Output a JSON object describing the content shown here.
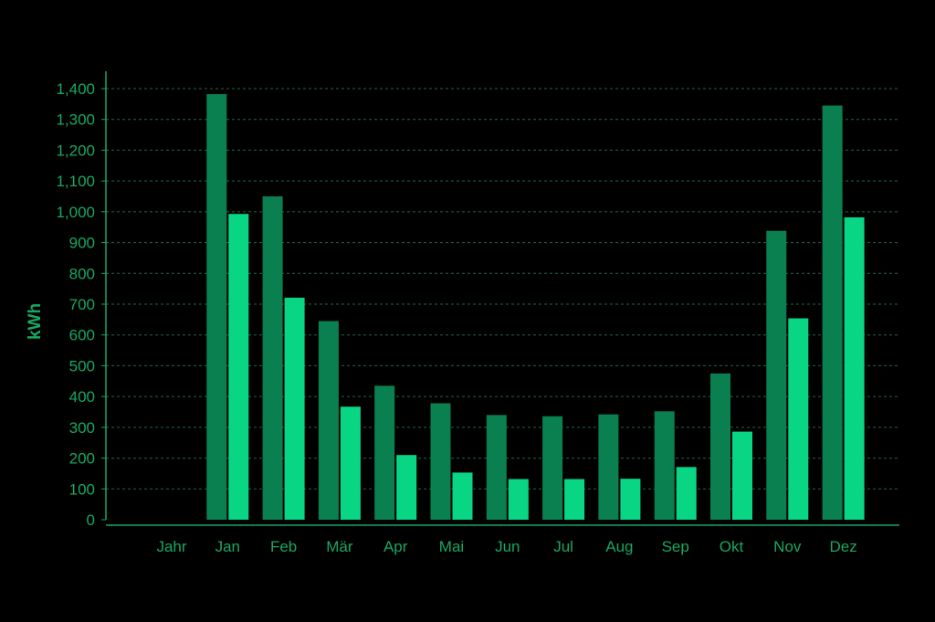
{
  "chart_data": {
    "type": "bar",
    "title": "",
    "xlabel": "",
    "ylabel": "kWh",
    "categories": [
      "Jahr",
      "Jan",
      "Feb",
      "Mär",
      "Apr",
      "Mai",
      "Jun",
      "Jul",
      "Aug",
      "Sep",
      "Okt",
      "Nov",
      "Dez"
    ],
    "series": [
      {
        "values": [
          null,
          1382,
          1050,
          645,
          435,
          378,
          340,
          336,
          342,
          352,
          475,
          938,
          1345
        ]
      },
      {
        "values": [
          null,
          993,
          721,
          367,
          210,
          153,
          132,
          132,
          133,
          171,
          286,
          654,
          982
        ]
      }
    ],
    "ylim": [
      0,
      1400
    ],
    "yticks": [
      "0",
      "100",
      "200",
      "300",
      "400",
      "500",
      "600",
      "700",
      "800",
      "900",
      "1,000",
      "1,100",
      "1,200",
      "1,300",
      "1,400"
    ],
    "grid": true,
    "legend": "none",
    "colors": {
      "background": "#000000",
      "series": [
        "#0a8050",
        "#08d685"
      ],
      "axis": "#17a862",
      "grid": "#1e6a40",
      "text": "#17a862"
    }
  }
}
